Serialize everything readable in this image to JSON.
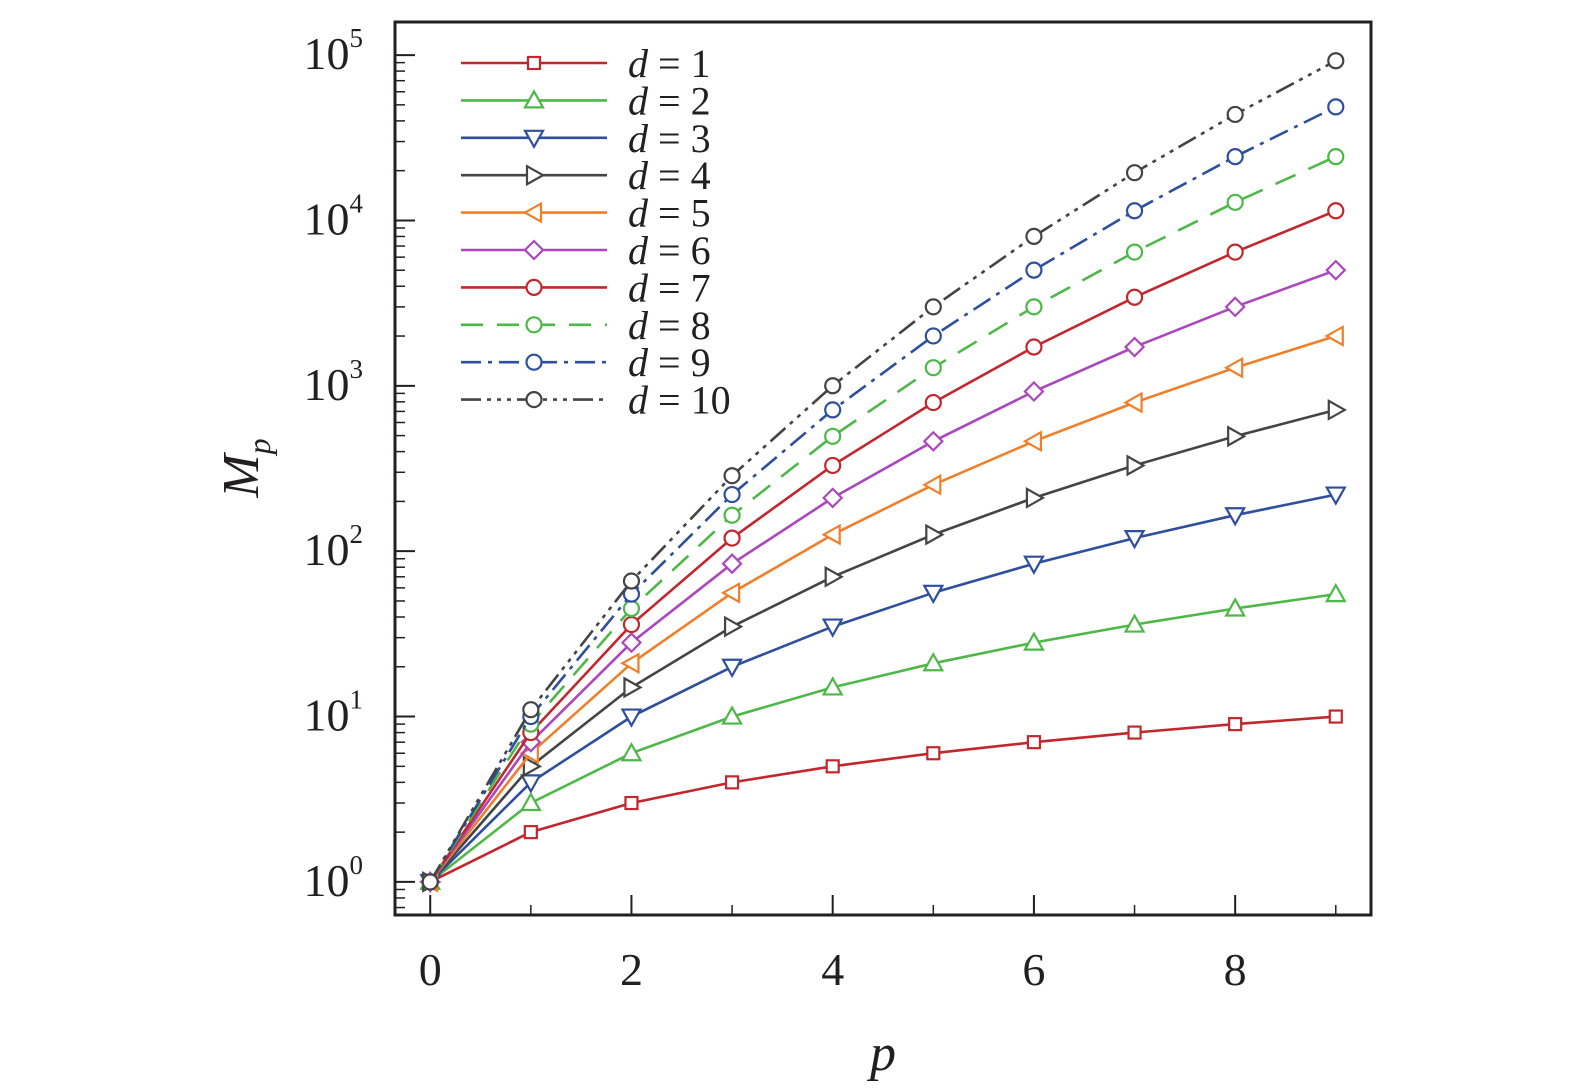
{
  "chart_data": {
    "type": "line",
    "title": "",
    "xlabel": "p",
    "ylabel": {
      "base": "M",
      "subscript": "p"
    },
    "x": [
      0,
      1,
      2,
      3,
      4,
      5,
      6,
      7,
      8,
      9
    ],
    "xlim": [
      -0.35,
      9.35
    ],
    "ylim_log10": [
      -0.2,
      5.2
    ],
    "y_scale": "log",
    "grid": false,
    "legend_position": "top-left",
    "x_ticks": [
      {
        "value": 0,
        "label": "0"
      },
      {
        "value": 2,
        "label": "2"
      },
      {
        "value": 4,
        "label": "4"
      },
      {
        "value": 6,
        "label": "6"
      },
      {
        "value": 8,
        "label": "8"
      }
    ],
    "y_ticks": [
      {
        "exp": 0,
        "base": "10",
        "sup": "0"
      },
      {
        "exp": 1,
        "base": "10",
        "sup": "1"
      },
      {
        "exp": 2,
        "base": "10",
        "sup": "2"
      },
      {
        "exp": 3,
        "base": "10",
        "sup": "3"
      },
      {
        "exp": 4,
        "base": "10",
        "sup": "4"
      },
      {
        "exp": 5,
        "base": "10",
        "sup": "5"
      }
    ],
    "series": [
      {
        "name": "d = 1",
        "d": "1",
        "color": "#c1272d",
        "marker": "square",
        "dash": "",
        "values": [
          1,
          2,
          3,
          4,
          5,
          6,
          7,
          8,
          9,
          10
        ]
      },
      {
        "name": "d = 2",
        "d": "2",
        "color": "#4db848",
        "marker": "triangle-up",
        "dash": "",
        "values": [
          1,
          3,
          6,
          10,
          15,
          21,
          28,
          36,
          45,
          55
        ]
      },
      {
        "name": "d = 3",
        "d": "3",
        "color": "#2e4e9e",
        "marker": "triangle-down",
        "dash": "",
        "values": [
          1,
          4,
          10,
          20,
          35,
          56,
          84,
          120,
          165,
          220
        ]
      },
      {
        "name": "d = 4",
        "d": "4",
        "color": "#444444",
        "marker": "triangle-right",
        "dash": "",
        "values": [
          1,
          5,
          15,
          35,
          70,
          126,
          210,
          330,
          495,
          715
        ]
      },
      {
        "name": "d = 5",
        "d": "5",
        "color": "#f07f2a",
        "marker": "triangle-left",
        "dash": "",
        "values": [
          1,
          6,
          21,
          56,
          126,
          252,
          462,
          792,
          1287,
          2002
        ]
      },
      {
        "name": "d = 6",
        "d": "6",
        "color": "#ab47bc",
        "marker": "diamond",
        "dash": "",
        "values": [
          1,
          7,
          28,
          84,
          210,
          462,
          924,
          1716,
          3003,
          5005
        ]
      },
      {
        "name": "d = 7",
        "d": "7",
        "color": "#c1272d",
        "marker": "circle",
        "dash": "",
        "values": [
          1,
          8,
          36,
          120,
          330,
          792,
          1716,
          3432,
          6435,
          11440
        ]
      },
      {
        "name": "d = 8",
        "d": "8",
        "color": "#4db848",
        "marker": "circle",
        "dash": "22,14",
        "values": [
          1,
          9,
          45,
          165,
          495,
          1287,
          3003,
          6435,
          12870,
          24310
        ]
      },
      {
        "name": "d = 9",
        "d": "9",
        "color": "#2e4e9e",
        "marker": "circle",
        "dash": "20,7,4,7",
        "values": [
          1,
          10,
          55,
          220,
          715,
          2002,
          5005,
          11440,
          24310,
          48620
        ]
      },
      {
        "name": "d = 10",
        "d": "10",
        "color": "#444444",
        "marker": "circle",
        "dash": "20,6,4,6,4,6,4,6",
        "values": [
          1,
          11,
          66,
          286,
          1001,
          3003,
          8008,
          19448,
          43758,
          92378
        ]
      }
    ]
  }
}
